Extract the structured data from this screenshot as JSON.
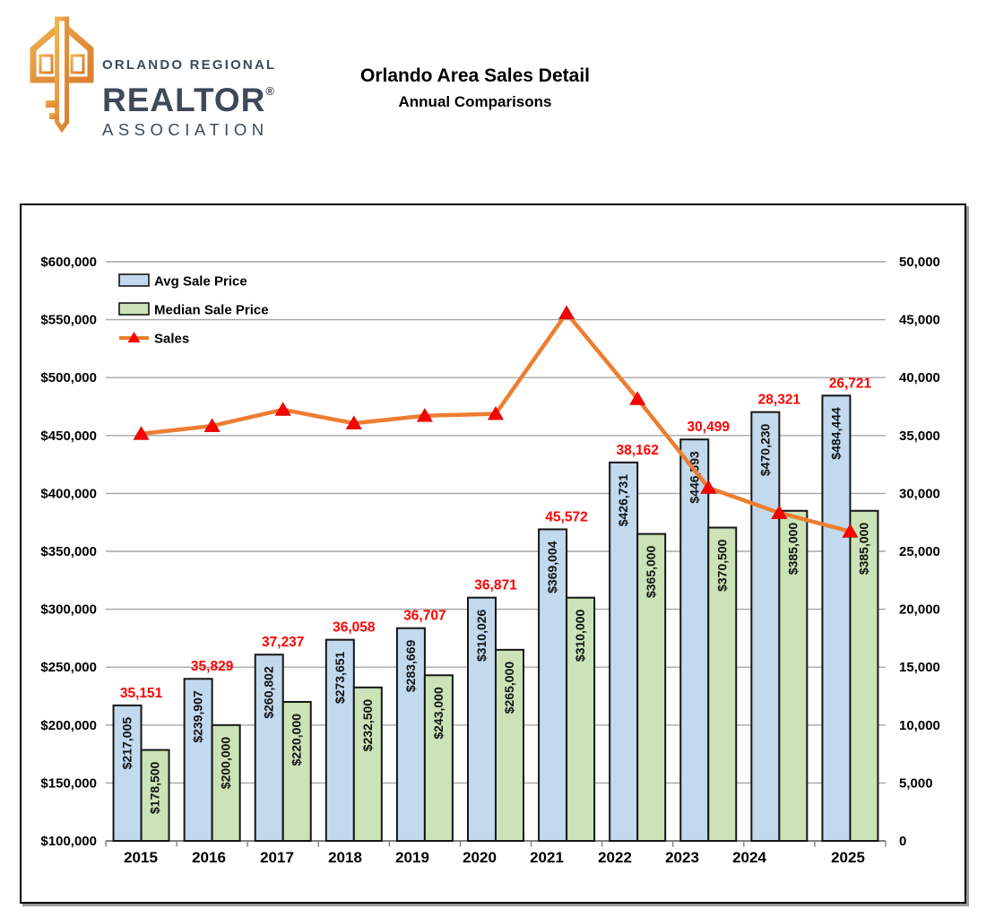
{
  "header": {
    "logo": {
      "line1": "ORLANDO REGIONAL",
      "line2": "REALTOR",
      "registered": "®",
      "line3": "ASSOCIATION"
    },
    "title": "Orlando Area Sales Detail",
    "subtitle": "Annual Comparisons"
  },
  "chart_data": {
    "type": "combo-bar-line",
    "categories": [
      "2015",
      "2016",
      "2017",
      "2018",
      "2019",
      "2020",
      "2021",
      "2022",
      "2023",
      "2024",
      "2025"
    ],
    "series": [
      {
        "name": "Avg Sale Price",
        "type": "bar",
        "axis": "left",
        "fill": "#C2D9EE",
        "stroke": "#151515",
        "values": [
          217005,
          239907,
          260802,
          273651,
          283669,
          310026,
          369004,
          426731,
          446593,
          470230,
          484444
        ]
      },
      {
        "name": "Median Sale Price",
        "type": "bar",
        "axis": "left",
        "fill": "#CBE3B7",
        "stroke": "#151515",
        "values": [
          178500,
          200000,
          220000,
          232500,
          243000,
          265000,
          310000,
          365000,
          370500,
          385000,
          385000
        ]
      },
      {
        "name": "Sales",
        "type": "line",
        "axis": "right",
        "line_color": "#ED7D31",
        "marker_color": "#FF0000",
        "label_color": "#FF0000",
        "values": [
          35151,
          35829,
          37237,
          36058,
          36707,
          36871,
          45572,
          38162,
          30499,
          28321,
          26721
        ]
      }
    ],
    "left_axis": {
      "min": 100000,
      "max": 600000,
      "step": 50000,
      "prefix": "$"
    },
    "right_axis": {
      "min": 0,
      "max": 50000,
      "step": 5000,
      "prefix": ""
    },
    "legend": [
      "Avg Sale Price",
      "Median Sale Price",
      "Sales"
    ],
    "legend_position": "top-left-inside",
    "gridlines": true,
    "gridline_color": "#A6A6A6",
    "axis_line_color": "#808080",
    "bar_label_color": "#111111",
    "axis_label_color": "#000000"
  }
}
